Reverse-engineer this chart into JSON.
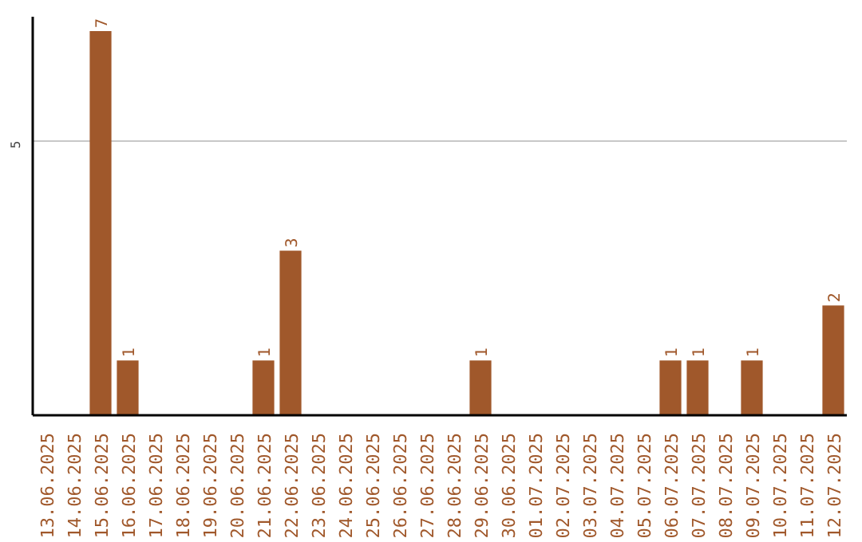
{
  "chart_data": {
    "type": "bar",
    "categories": [
      "13.06.2025",
      "14.06.2025",
      "15.06.2025",
      "16.06.2025",
      "17.06.2025",
      "18.06.2025",
      "19.06.2025",
      "20.06.2025",
      "21.06.2025",
      "22.06.2025",
      "23.06.2025",
      "24.06.2025",
      "25.06.2025",
      "26.06.2025",
      "27.06.2025",
      "28.06.2025",
      "29.06.2025",
      "30.06.2025",
      "01.07.2025",
      "02.07.2025",
      "03.07.2025",
      "04.07.2025",
      "05.07.2025",
      "06.07.2025",
      "07.07.2025",
      "08.07.2025",
      "09.07.2025",
      "10.07.2025",
      "11.07.2025",
      "12.07.2025"
    ],
    "values": [
      0,
      0,
      7,
      1,
      0,
      0,
      0,
      0,
      1,
      3,
      0,
      0,
      0,
      0,
      0,
      0,
      1,
      0,
      0,
      0,
      0,
      0,
      0,
      1,
      1,
      0,
      1,
      0,
      0,
      2
    ],
    "value_labels": [
      null,
      null,
      "7",
      "1",
      null,
      null,
      null,
      null,
      "1",
      "3",
      null,
      null,
      null,
      null,
      null,
      null,
      "1",
      null,
      null,
      null,
      null,
      null,
      null,
      "1",
      "1",
      null,
      "1",
      null,
      null,
      "2"
    ],
    "color": "#a0582b",
    "ylim": [
      0,
      7.26
    ],
    "yticks": [
      5
    ],
    "grid": "y"
  }
}
